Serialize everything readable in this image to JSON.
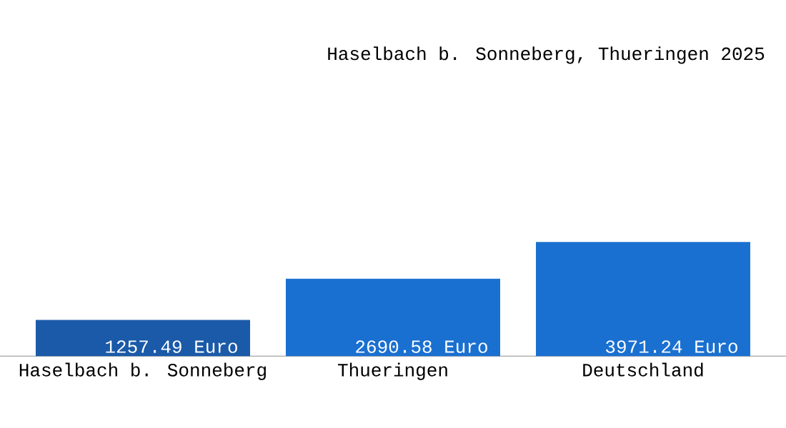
{
  "chart_data": {
    "type": "bar",
    "title": "Haselbach b. Sonneberg, Thueringen 2025",
    "categories": [
      "Haselbach b. Sonneberg",
      "Thueringen",
      "Deutschland"
    ],
    "values": [
      1257.49,
      2690.58,
      3971.24
    ],
    "value_labels": [
      "1257.49 Euro",
      "2690.58 Euro",
      "3971.24 Euro"
    ],
    "colors": [
      "#1a5aa8",
      "#1a70d0",
      "#1a70d0"
    ]
  }
}
